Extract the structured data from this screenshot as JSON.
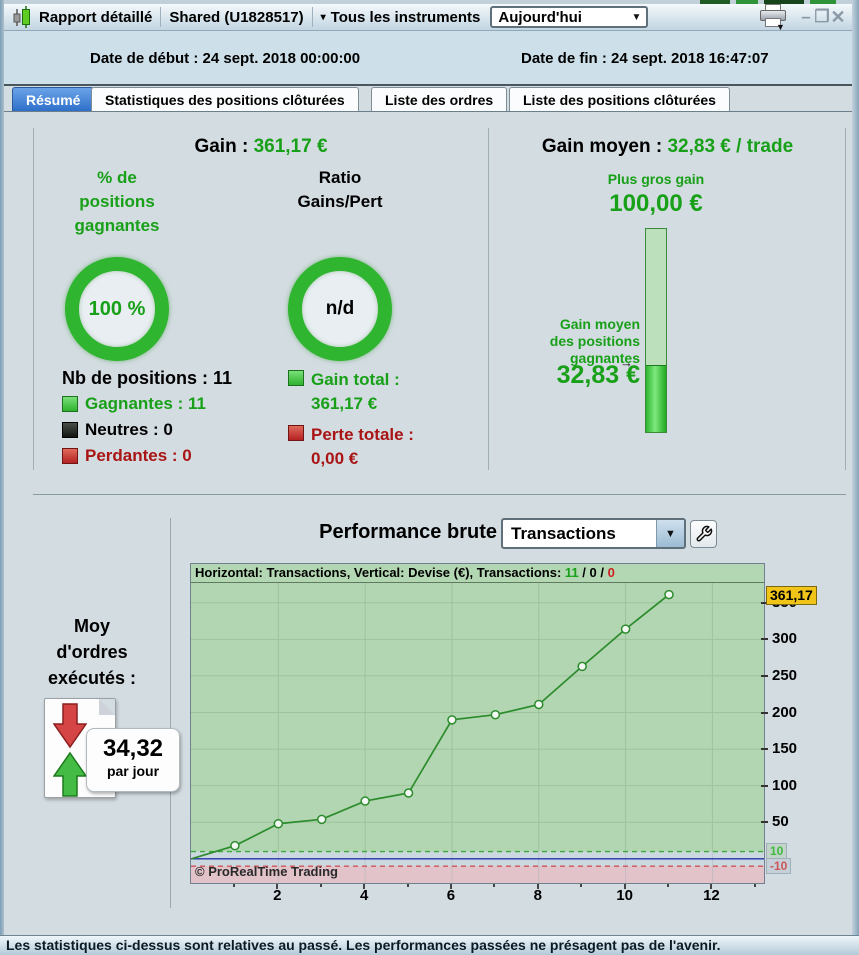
{
  "window": {
    "title": "Rapport détaillé",
    "account": "Shared (U1828517)",
    "instrument_filter": "Tous les instruments",
    "instrument_filter_arrow": "▾",
    "period_value": "Aujourd'hui",
    "combo_arrow": "▼",
    "controls": {
      "minimize": "–",
      "maximize": "❐",
      "close": "✕"
    }
  },
  "header": {
    "date_start": "Date de début : 24 sept. 2018 00:00:00",
    "date_end": "Date de fin : 24 sept. 2018 16:47:07"
  },
  "tabs": [
    {
      "label": "Résumé",
      "active": true
    },
    {
      "label": "Statistiques des positions clôturées",
      "active": false
    },
    {
      "label": "Liste des ordres",
      "active": false
    },
    {
      "label": "Liste des positions clôturées",
      "active": false
    }
  ],
  "summary": {
    "gain_label": "Gain :",
    "gain_value": "361,17 €",
    "pct_title_lines": [
      "% de",
      "positions",
      "gagnantes"
    ],
    "ratio_title_lines": [
      "Ratio",
      "Gains/Pert"
    ],
    "pct_value": "100 %",
    "ratio_value": "n/d",
    "nb_positions": "Nb de positions : 11",
    "legend": [
      {
        "label": "Gagnantes : 11",
        "color": "#2eb22e"
      },
      {
        "label": "Neutres : 0",
        "color": "#1a1a1a"
      },
      {
        "label": "Perdantes : 0",
        "color": "#b42222"
      }
    ],
    "totals": [
      {
        "label": "Gain total :",
        "value": "361,17 €",
        "color": "#2eb22e"
      },
      {
        "label": "Perte totale :",
        "value": "0,00 €",
        "color": "#b42222"
      }
    ]
  },
  "gain_moyen": {
    "label": "Gain moyen :",
    "value": "32,83 € / trade",
    "biggest_gain_label": "Plus gros gain",
    "biggest_gain_value": "100,00 €",
    "avg_win_label_lines": [
      "Gain moyen",
      "des positions",
      "gagnantes"
    ],
    "avg_win_arrow": "→",
    "avg_win_value": "32,83 €",
    "bar_max": 100.0,
    "bar_value": 32.83
  },
  "performance": {
    "title": "Performance brute",
    "selector_value": "Transactions",
    "selector_arrow": "▼"
  },
  "moy_ordres": {
    "label_lines": [
      "Moy",
      "d'ordres",
      "exécutés :"
    ],
    "value": "34,32",
    "unit": "par jour"
  },
  "chart_data": {
    "type": "line",
    "header_prefix": "Horizontal: Transactions, Vertical: Devise (€), Transactions: ",
    "counts": {
      "wins": "11",
      "neutral": "0",
      "losses": "0"
    },
    "x": [
      0,
      1,
      2,
      3,
      4,
      5,
      6,
      7,
      8,
      9,
      10,
      11
    ],
    "values": [
      0,
      18,
      48,
      54,
      79,
      90,
      190,
      197,
      211,
      263,
      314,
      361.17
    ],
    "xticks": [
      2,
      4,
      6,
      8,
      10,
      12
    ],
    "yticks": [
      50,
      100,
      150,
      200,
      250,
      300,
      350
    ],
    "xlim": [
      0,
      13.2
    ],
    "ylim": [
      -33,
      377
    ],
    "last_value_label": "361,17",
    "upper_threshold": 10,
    "lower_threshold": -10,
    "upper_threshold_label": "10",
    "lower_threshold_label": "-10",
    "watermark": "© ProRealTime Trading",
    "line_color": "#2c8c2c",
    "plot_bg": "#b2d6b2",
    "loss_zone_color": "#e2c3ca",
    "grid": true,
    "legend_position": "none"
  },
  "footer": {
    "disclaimer": "Les statistiques ci-dessus sont relatives au passé. Les performances passées ne présagent pas de l'avenir."
  },
  "colors": {
    "green_text": "#18a018",
    "red_text": "#a91414",
    "active_tab": "#3c7cd0",
    "badge_bg": "#f0c419"
  }
}
